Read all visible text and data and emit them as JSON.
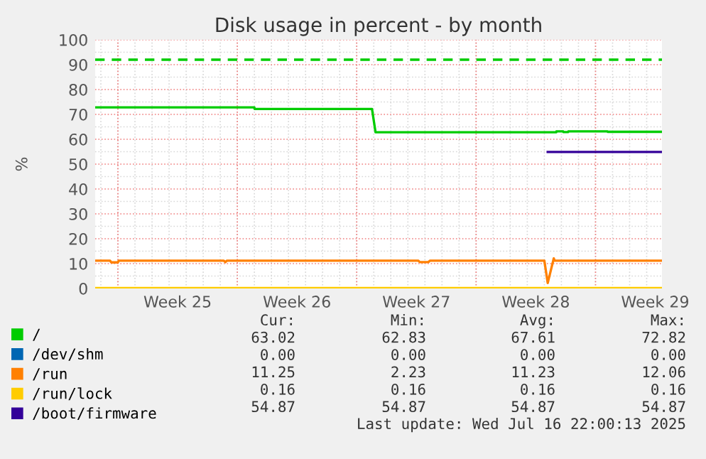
{
  "chart_data": {
    "type": "line",
    "title": "Disk usage in percent - by month",
    "ylabel": "%",
    "xlim": [
      "2025-06-14T16:00",
      "2025-07-17T21:30"
    ],
    "ylim": [
      0,
      100
    ],
    "xticks": [
      {
        "value": "2025-06-16",
        "label": null
      },
      {
        "value": "2025-06-19T12:00",
        "label": "Week 25"
      },
      {
        "value": "2025-06-23",
        "label": null
      },
      {
        "value": "2025-06-26T12:00",
        "label": "Week 26"
      },
      {
        "value": "2025-06-30",
        "label": null
      },
      {
        "value": "2025-07-03T12:00",
        "label": "Week 27"
      },
      {
        "value": "2025-07-07",
        "label": null
      },
      {
        "value": "2025-07-10T12:00",
        "label": "Week 28"
      },
      {
        "value": "2025-07-14",
        "label": null
      },
      {
        "value": "2025-07-17T12:00",
        "label": "Week 29"
      }
    ],
    "yticks": [
      0,
      10,
      20,
      30,
      40,
      50,
      60,
      70,
      80,
      90,
      100
    ],
    "grid": true,
    "legend": "bottom",
    "line_style": "solid",
    "marker": "none",
    "series": [
      {
        "name": "/",
        "color": "#00cc00",
        "x": [
          "2025-06-14T16:00",
          "2025-06-24T00:00",
          "2025-06-24T00:15",
          "2025-06-30T21:30",
          "2025-07-01T02:30",
          "2025-07-11T16:45",
          "2025-07-11T17:00",
          "2025-07-12T02:30",
          "2025-07-12T02:45",
          "2025-07-12T09:30",
          "2025-07-12T09:45",
          "2025-07-14T16:45",
          "2025-07-14T17:00",
          "2025-07-17T21:30"
        ],
        "values": [
          72.8,
          72.8,
          72.2,
          72.2,
          62.8,
          62.8,
          63.2,
          63.2,
          62.9,
          62.9,
          63.2,
          63.2,
          63.0,
          63.0
        ]
      },
      {
        "name": "/dev/shm",
        "color": "#0066b3"
      },
      {
        "name": "/run",
        "color": "#ff8000",
        "x": [
          "2025-06-14T16:00",
          "2025-06-15T13:00",
          "2025-06-15T14:30",
          "2025-06-16T00:00",
          "2025-06-16T01:15",
          "2025-06-22T04:45",
          "2025-06-22T07:15",
          "2025-06-22T09:30",
          "2025-07-03T14:30",
          "2025-07-03T16:45",
          "2025-07-04T04:45",
          "2025-07-04T07:15",
          "2025-07-11T00:00",
          "2025-07-11T04:45",
          "2025-07-11T13:15",
          "2025-07-11T14:30",
          "2025-07-17T21:30"
        ],
        "values": [
          11.2,
          11.2,
          10.5,
          10.5,
          11.2,
          11.2,
          10.6,
          11.2,
          11.2,
          10.6,
          10.6,
          11.2,
          11.2,
          2.2,
          12.1,
          11.2,
          11.2
        ]
      },
      {
        "name": "/run/lock",
        "color": "#ffcc00",
        "x": [
          "2025-06-14T16:00",
          "2025-07-17T21:30"
        ],
        "values": [
          0.2,
          0.2
        ]
      },
      {
        "name": "/boot/firmware",
        "color": "#330099",
        "x": [
          "2025-07-11T04:45",
          "2025-07-17T21:30"
        ],
        "values": [
          54.9,
          54.9
        ]
      }
    ],
    "ref_lines": [
      {
        "axis": "y",
        "value": 92,
        "color": "#00cc00",
        "line_style": "dashed"
      }
    ],
    "annotations": [
      "Cur:",
      "Min:",
      "Avg:",
      "Max:",
      "63.02",
      "62.83",
      "67.61",
      "72.82",
      "0.00",
      "0.00",
      "0.00",
      "0.00",
      "11.25",
      "2.23",
      "11.23",
      "12.06",
      "0.16",
      "0.16",
      "0.16",
      "0.16",
      "54.87",
      "54.87",
      "54.87",
      "54.87",
      "Last update: Wed Jul 16 22:00:13 2025"
    ]
  }
}
